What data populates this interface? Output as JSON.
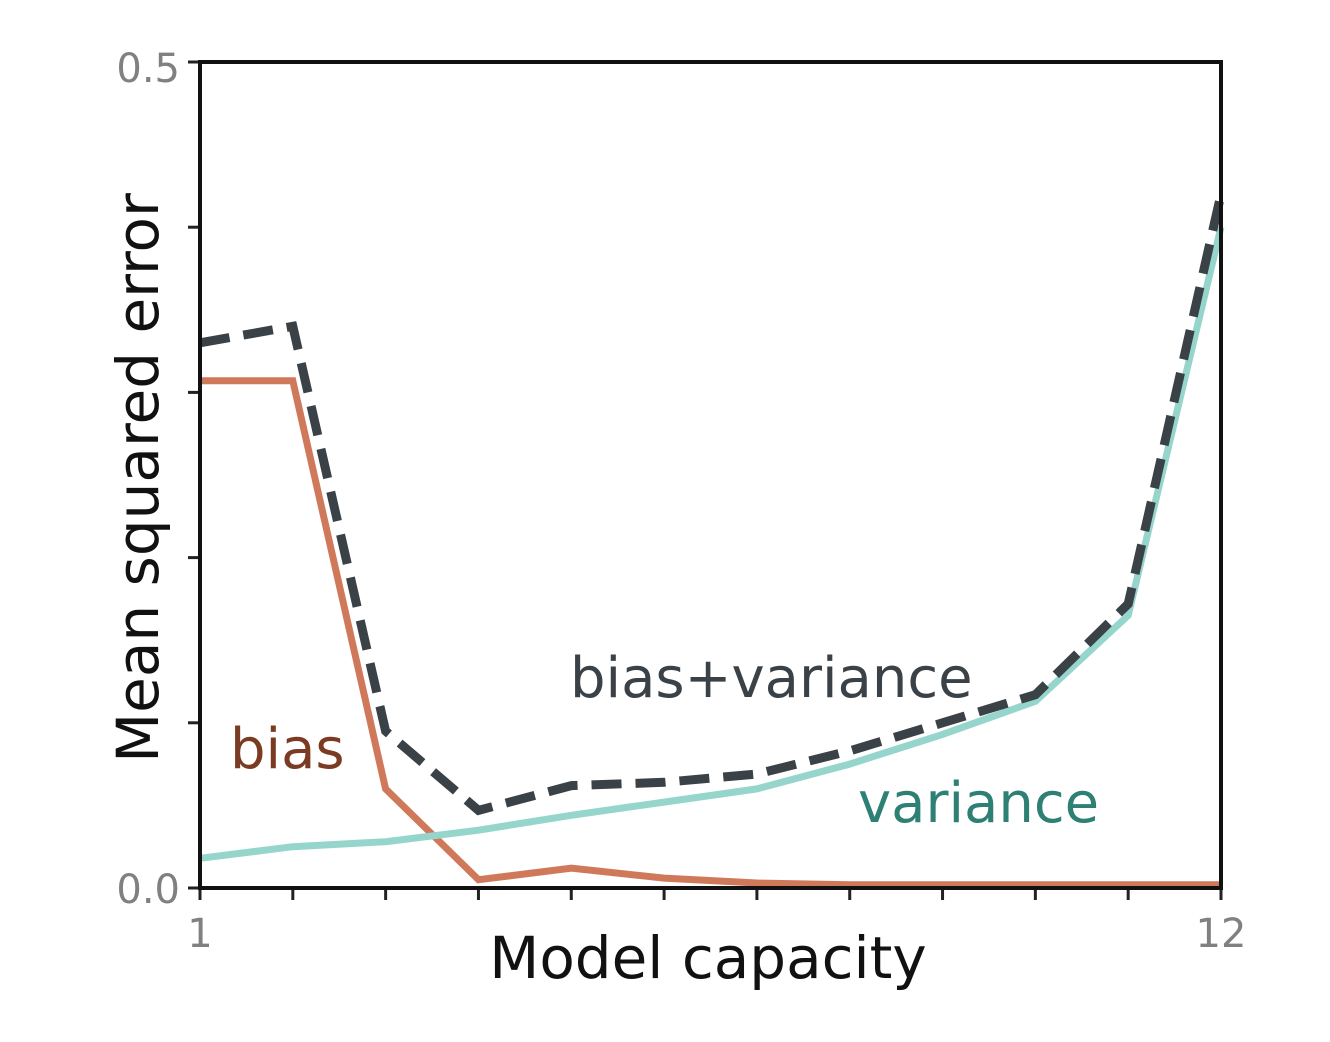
{
  "chart_data": {
    "type": "line",
    "title": "",
    "xlabel": "Model capacity",
    "ylabel": "Mean squared error",
    "xlim": [
      1,
      12
    ],
    "ylim": [
      0,
      0.5
    ],
    "x_tick_labels": [
      "1",
      "12"
    ],
    "y_tick_labels": [
      "0.0",
      "0.5"
    ],
    "grid": false,
    "x": [
      1,
      2,
      3,
      4,
      5,
      6,
      7,
      8,
      9,
      10,
      11,
      12
    ],
    "series": [
      {
        "name": "bias",
        "color": "#d0795a",
        "label_color": "#7a3b22",
        "style": "solid",
        "values": [
          0.307,
          0.307,
          0.06,
          0.005,
          0.012,
          0.006,
          0.003,
          0.002,
          0.002,
          0.002,
          0.002,
          0.002
        ]
      },
      {
        "name": "variance",
        "color": "#95d5cc",
        "label_color": "#2e7f74",
        "style": "solid",
        "values": [
          0.018,
          0.025,
          0.028,
          0.035,
          0.044,
          0.052,
          0.06,
          0.075,
          0.093,
          0.113,
          0.165,
          0.4
        ]
      },
      {
        "name": "bias+variance",
        "color": "#3a4147",
        "label_color": "#3a4147",
        "style": "dashed",
        "values": [
          0.33,
          0.34,
          0.095,
          0.047,
          0.062,
          0.064,
          0.069,
          0.083,
          0.1,
          0.117,
          0.172,
          0.42
        ]
      }
    ]
  }
}
